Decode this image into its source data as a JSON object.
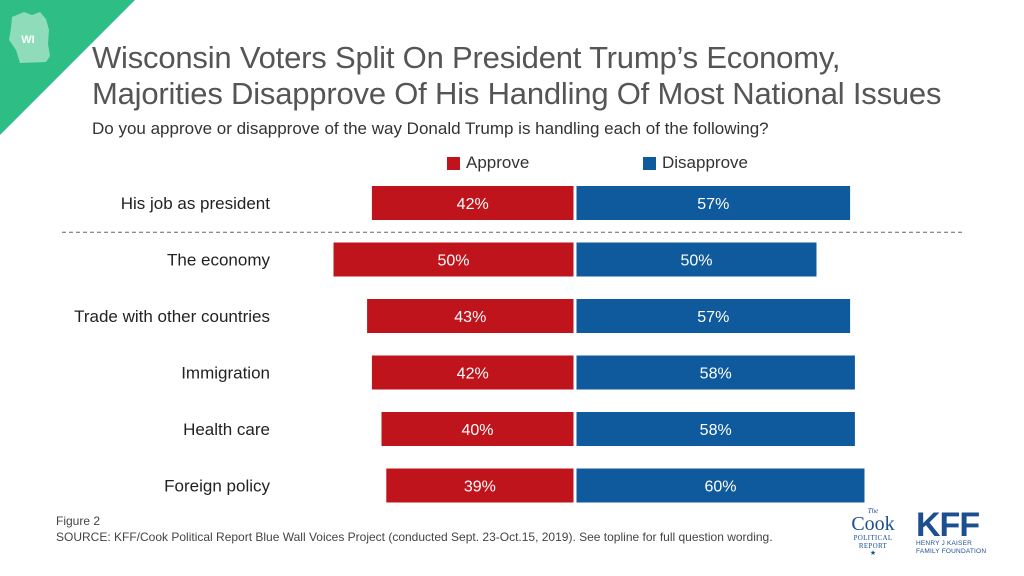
{
  "badge": {
    "label": "WI",
    "color": "#2ebd85"
  },
  "header": {
    "title_line1": "Wisconsin Voters Split On President Trump’s Economy,",
    "title_line2": "Majorities Disapprove Of His Handling Of Most National Issues",
    "subtitle": "Do you approve or disapprove of the way Donald Trump is handling each of the following?"
  },
  "colors": {
    "approve": "#c0141c",
    "disapprove": "#0f5a9c"
  },
  "chart_data": {
    "type": "bar",
    "orientation": "horizontal-diverging",
    "categories": [
      "His job as president",
      "The economy",
      "Trade with other countries",
      "Immigration",
      "Health care",
      "Foreign policy"
    ],
    "series": [
      {
        "name": "Approve",
        "values": [
          42,
          50,
          43,
          42,
          40,
          39
        ],
        "labels": [
          "42%",
          "50%",
          "43%",
          "42%",
          "40%",
          "39%"
        ]
      },
      {
        "name": "Disapprove",
        "values": [
          57,
          50,
          57,
          58,
          58,
          60
        ],
        "labels": [
          "57%",
          "50%",
          "57%",
          "58%",
          "58%",
          "60%"
        ]
      }
    ],
    "legend_position": "top",
    "separator_after_first": true
  },
  "footer": {
    "figure": "Figure 2",
    "source": "SOURCE: KFF/Cook Political Report Blue Wall Voices Project (conducted Sept. 23-Oct.15, 2019). See topline for full question wording."
  },
  "logos": {
    "cook_the": "The",
    "cook_word": "Cook",
    "cook_sub1": "POLITICAL",
    "cook_sub2": "REPORT",
    "cook_star": "★",
    "kff_word": "KFF",
    "kff_sub1": "HENRY J KAISER",
    "kff_sub2": "FAMILY FOUNDATION"
  }
}
